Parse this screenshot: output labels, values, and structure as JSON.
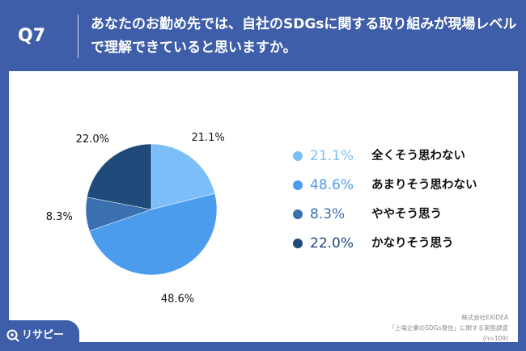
{
  "header": {
    "q_label": "Q7",
    "question": "あなたのお勤め先では、自社のSDGsに関する取り組みが現場レベルで理解できていると思いますか。"
  },
  "chart_data": {
    "type": "pie",
    "slices": [
      {
        "label": "全くそう思わない",
        "value": 21.1,
        "value_label": "21.1%",
        "color": "#7cbff8"
      },
      {
        "label": "あまりそう思わない",
        "value": 48.6,
        "value_label": "48.6%",
        "color": "#4c9cee"
      },
      {
        "label": "ややそう思う",
        "value": 8.3,
        "value_label": "8.3%",
        "color": "#3a6fb0"
      },
      {
        "label": "かなりそう思う",
        "value": 22.0,
        "value_label": "22.0%",
        "color": "#1f4a7a"
      }
    ],
    "legend_position": "right"
  },
  "source": {
    "line1": "株式会社EXIDEA",
    "line2": "「上場企業のSDGs発信」に関する実態調査",
    "line3": "(n=109)"
  },
  "logo": {
    "text": "リサピー",
    "icon": "magnifier-icon"
  }
}
